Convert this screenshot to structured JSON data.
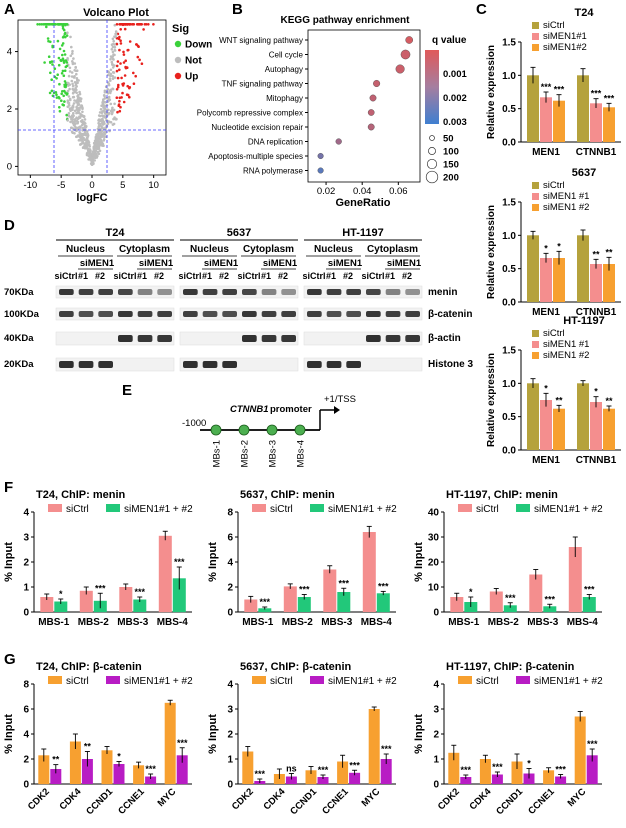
{
  "panels": {
    "A": {
      "letter": "A",
      "title": "Volcano Plot",
      "xlabel": "logFC",
      "xticks": [
        "-10",
        "-5",
        "0",
        "5",
        "10"
      ],
      "yticks": [
        "0",
        "2",
        "4"
      ],
      "legend_title": "Sig",
      "legend": [
        {
          "label": "Down",
          "color": "#3bd13b"
        },
        {
          "label": "Not",
          "color": "#bdbdbd"
        },
        {
          "label": "Up",
          "color": "#e8211d"
        }
      ]
    },
    "B": {
      "letter": "B",
      "title": "KEGG pathway enrichment",
      "xlabel": "GeneRatio",
      "xticks": [
        "0.02",
        "0.04",
        "0.06"
      ],
      "colorbar_title": "q value",
      "colorbar_ticks": [
        "0.001",
        "0.002",
        "0.003"
      ],
      "size_ticks": [
        "50",
        "100",
        "150",
        "200"
      ],
      "pathways": [
        "WNT signaling pathway",
        "Cell cycle",
        "Autophagy",
        "TNF signaling pathway",
        "Mitophagy",
        "Polycomb repressive complex",
        "Nucleotide excision repair",
        "DNA replication",
        "Apoptosis-multiple species",
        "RNA polymerase"
      ]
    },
    "C": {
      "letter": "C",
      "ylabel": "Relative expression",
      "legend": [
        "siCtrl",
        "siMEN1#1",
        "siMEN1#2"
      ],
      "legend_alt": [
        "siCtrl",
        "siMEN1 #1",
        "siMEN1 #2"
      ],
      "genes": [
        "MEN1",
        "CTNNB1"
      ],
      "yticks": [
        "0.0",
        "0.5",
        "1.0",
        "1.5"
      ],
      "cells": [
        "T24",
        "5637",
        "HT-1197"
      ]
    },
    "D": {
      "letter": "D",
      "cells": [
        "T24",
        "5637",
        "HT-1197"
      ],
      "fractions": [
        "Nucleus",
        "Cytoplasm"
      ],
      "group": "siMEN1",
      "lanes": [
        "siCtrl",
        "#1",
        "#2"
      ],
      "mw": [
        "70KDa",
        "100KDa",
        "40KDa",
        "20KDa"
      ],
      "proteins": [
        "menin",
        "β-catenin",
        "β-actin",
        "Histone 3"
      ]
    },
    "E": {
      "letter": "E",
      "promoter_gene": "CTNNB1",
      "promoter_word": "promoter",
      "start": "-1000",
      "tss": "+1/TSS",
      "sites": [
        "MBs-1",
        "MBs-2",
        "MBs-3",
        "MBs-4"
      ]
    },
    "F": {
      "letter": "F",
      "ylabel": "% Input",
      "legend": [
        "siCtrl",
        "siMEN1#1 + #2"
      ],
      "categories": [
        "MBS-1",
        "MBS-2",
        "MBS-3",
        "MBS-4"
      ],
      "colors": [
        "#f48e8e",
        "#22c87a"
      ]
    },
    "G": {
      "letter": "G",
      "ylabel": "% Input",
      "legend": [
        "siCtrl",
        "siMEN1#1 + #2"
      ],
      "categories": [
        "CDK2",
        "CDK4",
        "CCND1",
        "CCNE1",
        "MYC"
      ],
      "colors": [
        "#f7a030",
        "#b81cc4"
      ]
    }
  },
  "chart_data": [
    {
      "type": "bar",
      "title": "T24",
      "categories": [
        "MEN1",
        "CTNNB1"
      ],
      "ylabel": "Relative expression",
      "ylim": [
        0,
        1.5
      ],
      "series": [
        {
          "name": "siCtrl",
          "values": [
            1.0,
            1.0
          ],
          "err": [
            0.12,
            0.1
          ]
        },
        {
          "name": "siMEN1#1",
          "values": [
            0.67,
            0.58
          ],
          "err": [
            0.08,
            0.07
          ]
        },
        {
          "name": "siMEN1#2",
          "values": [
            0.62,
            0.52
          ],
          "err": [
            0.09,
            0.06
          ]
        }
      ],
      "sig": [
        [
          "",
          "***",
          "***"
        ],
        [
          "",
          "***",
          "***"
        ]
      ]
    },
    {
      "type": "bar",
      "title": "5637",
      "categories": [
        "MEN1",
        "CTNNB1"
      ],
      "ylabel": "Relative expression",
      "ylim": [
        0,
        1.5
      ],
      "series": [
        {
          "name": "siCtrl",
          "values": [
            1.0,
            1.0
          ],
          "err": [
            0.06,
            0.08
          ]
        },
        {
          "name": "siMEN1 #1",
          "values": [
            0.66,
            0.57
          ],
          "err": [
            0.07,
            0.07
          ]
        },
        {
          "name": "siMEN1 #2",
          "values": [
            0.66,
            0.57
          ],
          "err": [
            0.1,
            0.1
          ]
        }
      ],
      "sig": [
        [
          "",
          "*",
          "*"
        ],
        [
          "",
          "**",
          "**"
        ]
      ]
    },
    {
      "type": "bar",
      "title": "HT-1197",
      "categories": [
        "MEN1",
        "CTNNB1"
      ],
      "ylabel": "Relative expression",
      "ylim": [
        0,
        1.5
      ],
      "series": [
        {
          "name": "siCtrl",
          "values": [
            1.0,
            1.0
          ],
          "err": [
            0.07,
            0.04
          ]
        },
        {
          "name": "siMEN1 #1",
          "values": [
            0.75,
            0.72
          ],
          "err": [
            0.1,
            0.08
          ]
        },
        {
          "name": "siMEN1 #2",
          "values": [
            0.62,
            0.62
          ],
          "err": [
            0.05,
            0.04
          ]
        }
      ],
      "sig": [
        [
          "",
          "*",
          "**"
        ],
        [
          "",
          "*",
          "**"
        ]
      ]
    },
    {
      "type": "bar",
      "title": "T24, ChIP: menin",
      "categories": [
        "MBS-1",
        "MBS-2",
        "MBS-3",
        "MBS-4"
      ],
      "ylabel": "% Input",
      "ylim": [
        0,
        4
      ],
      "yticks": [
        0,
        1,
        2,
        3,
        4
      ],
      "series": [
        {
          "name": "siCtrl",
          "values": [
            0.6,
            0.85,
            1.0,
            3.05
          ],
          "err": [
            0.12,
            0.15,
            0.12,
            0.18
          ]
        },
        {
          "name": "siMEN1#1 + #2",
          "values": [
            0.42,
            0.45,
            0.5,
            1.35
          ],
          "err": [
            0.1,
            0.3,
            0.1,
            0.45
          ]
        }
      ],
      "sig": [
        "*",
        "***",
        "***",
        "***"
      ]
    },
    {
      "type": "bar",
      "title": "5637, ChIP: menin",
      "categories": [
        "MBS-1",
        "MBS-2",
        "MBS-3",
        "MBS-4"
      ],
      "ylabel": "% Input",
      "ylim": [
        0,
        8
      ],
      "yticks": [
        0,
        2,
        4,
        6,
        8
      ],
      "series": [
        {
          "name": "siCtrl",
          "values": [
            1.0,
            2.05,
            3.4,
            6.4
          ],
          "err": [
            0.25,
            0.2,
            0.3,
            0.45
          ]
        },
        {
          "name": "siMEN1#1 + #2",
          "values": [
            0.3,
            1.2,
            1.6,
            1.5
          ],
          "err": [
            0.1,
            0.2,
            0.3,
            0.15
          ]
        }
      ],
      "sig": [
        "***",
        "***",
        "***",
        "***"
      ]
    },
    {
      "type": "bar",
      "title": "HT-1197, ChIP: menin",
      "categories": [
        "MBS-1",
        "MBS-2",
        "MBS-3",
        "MBS-4"
      ],
      "ylabel": "% Input",
      "ylim": [
        0,
        40
      ],
      "yticks": [
        0,
        10,
        20,
        30,
        40
      ],
      "series": [
        {
          "name": "siCtrl",
          "values": [
            6.0,
            8.2,
            15.0,
            26.0
          ],
          "err": [
            1.5,
            1.2,
            2.0,
            4.0
          ]
        },
        {
          "name": "siMEN1#1 + #2",
          "values": [
            4.0,
            2.7,
            2.3,
            6.0
          ],
          "err": [
            2.0,
            1.0,
            0.8,
            1.0
          ]
        }
      ],
      "sig": [
        "*",
        "***",
        "***",
        "***"
      ]
    },
    {
      "type": "bar",
      "title": "T24, ChIP: β-catenin",
      "categories": [
        "CDK2",
        "CDK4",
        "CCND1",
        "CCNE1",
        "MYC"
      ],
      "ylabel": "% Input",
      "ylim": [
        0,
        8
      ],
      "yticks": [
        0,
        2,
        4,
        6,
        8
      ],
      "series": [
        {
          "name": "siCtrl",
          "values": [
            2.3,
            3.4,
            2.7,
            1.5,
            6.5
          ],
          "err": [
            0.5,
            0.6,
            0.3,
            0.25,
            0.2
          ]
        },
        {
          "name": "siMEN1#1 + #2",
          "values": [
            1.2,
            2.0,
            1.6,
            0.6,
            2.3
          ],
          "err": [
            0.35,
            0.6,
            0.2,
            0.2,
            0.6
          ]
        }
      ],
      "sig": [
        "**",
        "**",
        "*",
        "***",
        "***"
      ]
    },
    {
      "type": "bar",
      "title": "5637, ChIP: β-catenin",
      "categories": [
        "CDK2",
        "CDK4",
        "CCND1",
        "CCNE1",
        "MYC"
      ],
      "ylabel": "% Input",
      "ylim": [
        0,
        4
      ],
      "yticks": [
        0,
        1,
        2,
        3,
        4
      ],
      "series": [
        {
          "name": "siCtrl",
          "values": [
            1.3,
            0.4,
            0.55,
            0.9,
            3.0
          ],
          "err": [
            0.2,
            0.2,
            0.15,
            0.25,
            0.08
          ]
        },
        {
          "name": "siMEN1#1 + #2",
          "values": [
            0.12,
            0.3,
            0.28,
            0.45,
            1.0
          ],
          "err": [
            0.08,
            0.12,
            0.08,
            0.1,
            0.2
          ]
        }
      ],
      "sig": [
        "***",
        "ns",
        "***",
        "***",
        "***"
      ]
    },
    {
      "type": "bar",
      "title": "HT-1197, ChIP: β-catenin",
      "categories": [
        "CDK2",
        "CDK4",
        "CCND1",
        "CCNE1",
        "MYC"
      ],
      "ylabel": "% Input",
      "ylim": [
        0,
        4
      ],
      "yticks": [
        0,
        1,
        2,
        3,
        4
      ],
      "series": [
        {
          "name": "siCtrl",
          "values": [
            1.25,
            1.0,
            0.9,
            0.55,
            2.7
          ],
          "err": [
            0.3,
            0.15,
            0.3,
            0.1,
            0.2
          ]
        },
        {
          "name": "siMEN1#1 + #2",
          "values": [
            0.28,
            0.38,
            0.42,
            0.3,
            1.15
          ],
          "err": [
            0.08,
            0.1,
            0.2,
            0.08,
            0.25
          ]
        }
      ],
      "sig": [
        "***",
        "***",
        "*",
        "***",
        "***"
      ]
    },
    {
      "type": "scatter",
      "title": "KEGG pathway enrichment",
      "y": [
        "WNT signaling pathway",
        "Cell cycle",
        "Autophagy",
        "TNF signaling pathway",
        "Mitophagy",
        "Polycomb repressive complex",
        "Nucleotide excision repair",
        "DNA replication",
        "Apoptosis-multiple species",
        "RNA polymerase"
      ],
      "x": [
        0.066,
        0.064,
        0.061,
        0.048,
        0.046,
        0.045,
        0.045,
        0.027,
        0.017,
        0.017
      ],
      "size": [
        60,
        130,
        110,
        45,
        40,
        35,
        40,
        25,
        20,
        20
      ],
      "qvalue": [
        0.0002,
        0.0004,
        0.0004,
        0.0005,
        0.0006,
        0.0006,
        0.0008,
        0.0012,
        0.002,
        0.0025
      ],
      "xlabel": "GeneRatio",
      "xlim": [
        0.01,
        0.072
      ]
    }
  ]
}
